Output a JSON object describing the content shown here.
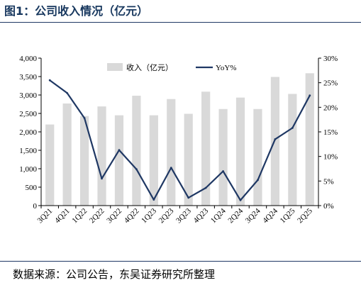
{
  "title": "图1：公司收入情况（亿元）",
  "source": "数据来源：公司公告，东吴证券研究所整理",
  "chart_data": {
    "type": "bar",
    "categories": [
      "3Q21",
      "4Q21",
      "1Q22",
      "2Q22",
      "3Q22",
      "4Q22",
      "1Q23",
      "2Q23",
      "3Q23",
      "4Q23",
      "1Q24",
      "2Q24",
      "3Q24",
      "4Q24",
      "1Q25",
      "2Q25"
    ],
    "series": [
      {
        "name": "收入（亿元）",
        "type": "bar",
        "axis": "left",
        "color": "#d9d9d9",
        "values": [
          2200,
          2770,
          2430,
          2690,
          2450,
          2980,
          2450,
          2890,
          2490,
          3090,
          2620,
          2930,
          2620,
          3490,
          3030,
          3590
        ]
      },
      {
        "name": "YoY%",
        "type": "line",
        "axis": "right",
        "color": "#1f3864",
        "values": [
          25.5,
          22.9,
          17.8,
          5.5,
          11.3,
          7.4,
          1.2,
          7.7,
          1.6,
          3.6,
          7.0,
          1.1,
          5.2,
          13.5,
          15.8,
          22.4
        ]
      }
    ],
    "y_left": {
      "min": 0,
      "max": 4000,
      "step": 500,
      "ticks": [
        "0",
        "500",
        "1,000",
        "1,500",
        "2,000",
        "2,500",
        "3,000",
        "3,500",
        "4,000"
      ]
    },
    "y_right": {
      "min": 0,
      "max": 30,
      "step": 5,
      "ticks": [
        "0%",
        "5%",
        "10%",
        "15%",
        "20%",
        "25%",
        "30%"
      ]
    },
    "legend": {
      "placement": "top",
      "items": [
        "收入（亿元）",
        "YoY%"
      ]
    },
    "grid": false
  }
}
